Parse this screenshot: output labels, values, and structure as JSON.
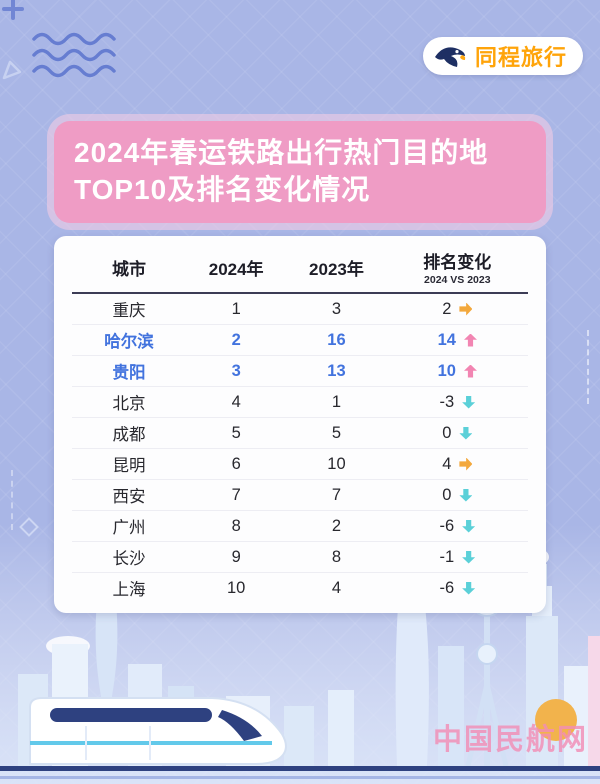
{
  "brand": {
    "name": "同程旅行"
  },
  "title": {
    "line1": "2024年春运铁路出行热门目的地",
    "line2": "TOP10及排名变化情况"
  },
  "table": {
    "headers": {
      "city": "城市",
      "col2024": "2024年",
      "col2023": "2023年",
      "change": "排名变化",
      "change_sub": "2024 VS 2023"
    },
    "rows": [
      {
        "city": "重庆",
        "rank2024": "1",
        "rank2023": "3",
        "change": "2",
        "arrow": "right",
        "highlight": false
      },
      {
        "city": "哈尔滨",
        "rank2024": "2",
        "rank2023": "16",
        "change": "14",
        "arrow": "up",
        "highlight": true
      },
      {
        "city": "贵阳",
        "rank2024": "3",
        "rank2023": "13",
        "change": "10",
        "arrow": "up",
        "highlight": true
      },
      {
        "city": "北京",
        "rank2024": "4",
        "rank2023": "1",
        "change": "-3",
        "arrow": "down",
        "highlight": false
      },
      {
        "city": "成都",
        "rank2024": "5",
        "rank2023": "5",
        "change": "0",
        "arrow": "down",
        "highlight": false
      },
      {
        "city": "昆明",
        "rank2024": "6",
        "rank2023": "10",
        "change": "4",
        "arrow": "right",
        "highlight": false
      },
      {
        "city": "西安",
        "rank2024": "7",
        "rank2023": "7",
        "change": "0",
        "arrow": "down",
        "highlight": false
      },
      {
        "city": "广州",
        "rank2024": "8",
        "rank2023": "2",
        "change": "-6",
        "arrow": "down",
        "highlight": false
      },
      {
        "city": "长沙",
        "rank2024": "9",
        "rank2023": "8",
        "change": "-1",
        "arrow": "down",
        "highlight": false
      },
      {
        "city": "上海",
        "rank2024": "10",
        "rank2023": "4",
        "change": "-6",
        "arrow": "down",
        "highlight": false
      }
    ]
  },
  "watermark": "中国民航网",
  "colors": {
    "background": "#a9b6e6",
    "title_bg": "#ef9cc5",
    "highlight_blue": "#4273de",
    "arrow_up": "#f285b2",
    "arrow_down": "#5bd0d8",
    "arrow_right": "#f3a83c",
    "brand_orange": "#ffa40a",
    "watermark_pink": "#f28eb6"
  },
  "chart_data": {
    "type": "table",
    "title": "2024年春运铁路出行热门目的地TOP10及排名变化情况",
    "columns": [
      "城市",
      "2024年",
      "2023年",
      "排名变化 2024 VS 2023"
    ],
    "rows": [
      [
        "重庆",
        1,
        3,
        "+2"
      ],
      [
        "哈尔滨",
        2,
        16,
        "+14"
      ],
      [
        "贵阳",
        3,
        13,
        "+10"
      ],
      [
        "北京",
        4,
        1,
        "-3"
      ],
      [
        "成都",
        5,
        5,
        "0"
      ],
      [
        "昆明",
        6,
        10,
        "+4"
      ],
      [
        "西安",
        7,
        7,
        "0"
      ],
      [
        "广州",
        8,
        2,
        "-6"
      ],
      [
        "长沙",
        9,
        8,
        "-1"
      ],
      [
        "上海",
        10,
        4,
        "-6"
      ]
    ]
  }
}
